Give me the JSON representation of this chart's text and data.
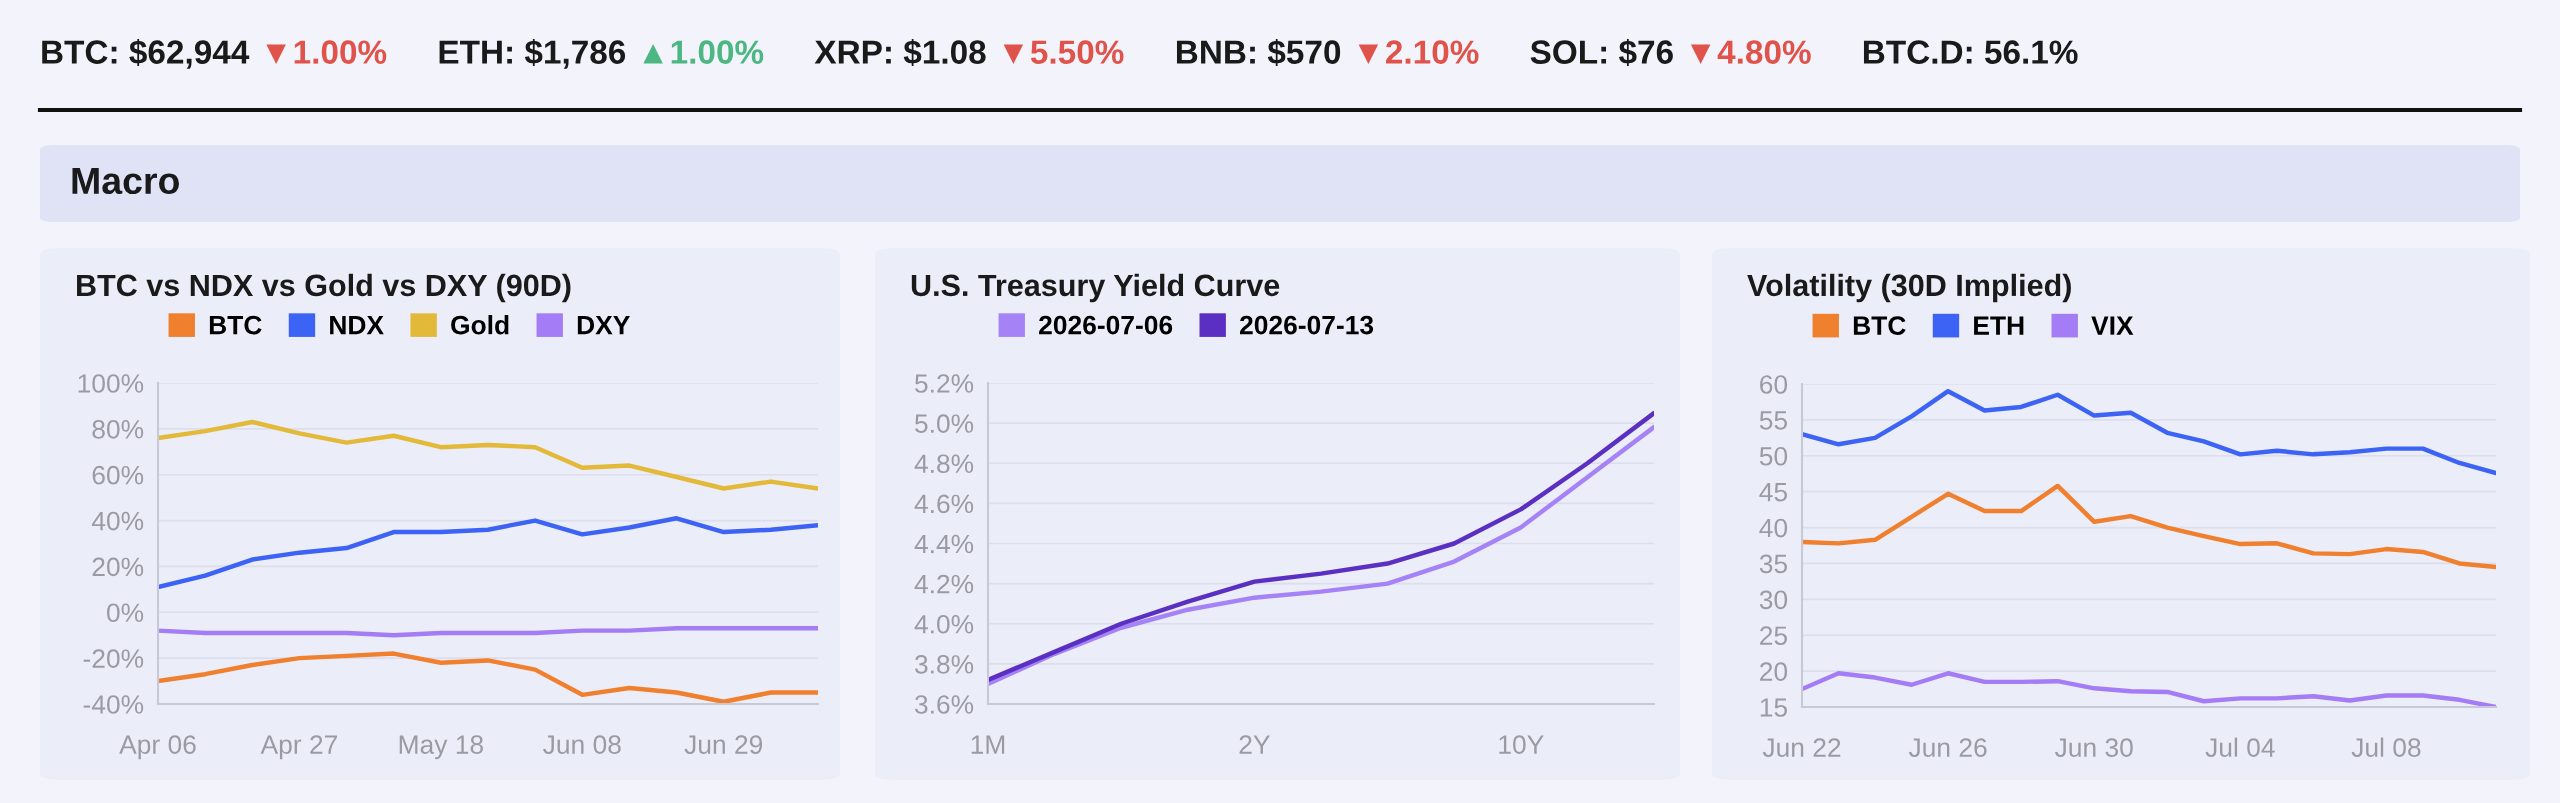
{
  "chart_data": [
    {
      "type": "other",
      "title": "Macro",
      "annotations": [
        "BTC: $62,944",
        "▼1.00%",
        "ETH: $1,786",
        "▲1.00%",
        "XRP: $1.08",
        "▼5.50%",
        "BNB: $570",
        "▼2.10%",
        "SOL: $76",
        "▼4.80%",
        "BTC.D: 56.1%"
      ],
      "colors": [
        "#1a1a1a",
        "#e0534a",
        "#1a1a1a",
        "#4cb782",
        "#1a1a1a",
        "#e0534a",
        "#1a1a1a",
        "#e0534a",
        "#1a1a1a",
        "#e0534a",
        "#1a1a1a"
      ]
    },
    {
      "type": "line",
      "title": "BTC vs NDX vs Gold vs DXY (90D)",
      "categories": [
        "Apr 06",
        null,
        null,
        "Apr 27",
        null,
        null,
        "May 18",
        null,
        null,
        "Jun 08",
        null,
        null,
        "Jun 29",
        null,
        null
      ],
      "series": [
        {
          "name": "BTC",
          "color": "#f07f2e",
          "values": [
            -30,
            -27,
            -23,
            -20,
            -19,
            -18,
            -22,
            -21,
            -25,
            -36,
            -33,
            -35,
            -39,
            -35,
            -35
          ]
        },
        {
          "name": "NDX",
          "color": "#3d63f5",
          "values": [
            11,
            16,
            23,
            26,
            28,
            35,
            35,
            36,
            40,
            34,
            37,
            41,
            35,
            36,
            38
          ]
        },
        {
          "name": "Gold",
          "color": "#e3b93a",
          "values": [
            76,
            79,
            83,
            78,
            74,
            77,
            72,
            73,
            72,
            63,
            64,
            59,
            54,
            57,
            54
          ]
        },
        {
          "name": "DXY",
          "color": "#a47cf5",
          "values": [
            -8,
            -9,
            -9,
            -9,
            -9,
            -10,
            -9,
            -9,
            -9,
            -8,
            -8,
            -7,
            -7,
            -7,
            -7
          ]
        }
      ],
      "ylim": [
        -40,
        100
      ],
      "yticks": [
        {
          "value": -40,
          "label": "-40%"
        },
        {
          "value": -20,
          "label": "-20%"
        },
        {
          "value": 0,
          "label": "0%"
        },
        {
          "value": 20,
          "label": "20%"
        },
        {
          "value": 40,
          "label": "40%"
        },
        {
          "value": 60,
          "label": "60%"
        },
        {
          "value": 80,
          "label": "80%"
        },
        {
          "value": 100,
          "label": "100%"
        }
      ],
      "grid": "y",
      "legend": "top left",
      "marker": "none",
      "line_style": "solid"
    },
    {
      "type": "line",
      "title": "U.S. Treasury Yield Curve",
      "categories": [
        "1M",
        null,
        null,
        null,
        "2Y",
        null,
        null,
        null,
        "10Y",
        null,
        null
      ],
      "series": [
        {
          "name": "2026-07-06",
          "color": "#a583f7",
          "values": [
            3.7,
            3.85,
            3.98,
            4.07,
            4.13,
            4.16,
            4.2,
            4.31,
            4.48,
            4.73,
            4.98
          ]
        },
        {
          "name": "2026-07-13",
          "color": "#5a2fc2",
          "values": [
            3.72,
            3.86,
            4.0,
            4.11,
            4.21,
            4.25,
            4.3,
            4.4,
            4.57,
            4.8,
            5.05
          ]
        }
      ],
      "ylim": [
        3.6,
        5.2
      ],
      "yticks": [
        {
          "value": 3.6,
          "label": "3.6%"
        },
        {
          "value": 3.8,
          "label": "3.8%"
        },
        {
          "value": 4.0,
          "label": "4.0%"
        },
        {
          "value": 4.2,
          "label": "4.2%"
        },
        {
          "value": 4.4,
          "label": "4.4%"
        },
        {
          "value": 4.6,
          "label": "4.6%"
        },
        {
          "value": 4.8,
          "label": "4.8%"
        },
        {
          "value": 5.0,
          "label": "5.0%"
        },
        {
          "value": 5.2,
          "label": "5.2%"
        }
      ],
      "grid": "y",
      "legend": "top left",
      "marker": "none",
      "line_style": "solid"
    },
    {
      "type": "line",
      "title": "Volatility (30D Implied)",
      "categories": [
        "Jun 22",
        null,
        null,
        null,
        "Jun 26",
        null,
        null,
        null,
        "Jun 30",
        null,
        null,
        null,
        "Jul 04",
        null,
        null,
        null,
        "Jul 08",
        null,
        null,
        null
      ],
      "series": [
        {
          "name": "BTC",
          "color": "#f07f2e",
          "values": [
            38,
            37.8,
            38.3,
            41.5,
            44.7,
            42.3,
            42.3,
            45.8,
            40.8,
            41.6,
            40,
            38.8,
            37.7,
            37.8,
            36.4,
            36.3,
            37,
            36.6,
            35,
            34.5
          ]
        },
        {
          "name": "ETH",
          "color": "#3d63f5",
          "values": [
            53,
            51.6,
            52.5,
            55.5,
            59,
            56.3,
            56.8,
            58.5,
            55.6,
            56,
            53.2,
            52,
            50.2,
            50.7,
            50.2,
            50.5,
            51,
            51,
            49,
            47.6
          ]
        },
        {
          "name": "VIX",
          "color": "#a47cf5",
          "values": [
            17.5,
            19.7,
            19.1,
            18.1,
            19.7,
            18.5,
            18.5,
            18.6,
            17.6,
            17.2,
            17.1,
            15.8,
            16.2,
            16.2,
            16.5,
            15.9,
            16.6,
            16.6,
            16,
            15
          ]
        }
      ],
      "ylim": [
        15,
        60
      ],
      "yticks": [
        15,
        20,
        25,
        30,
        35,
        40,
        45,
        50,
        55,
        60
      ],
      "grid": "y",
      "legend": "top left",
      "marker": "none",
      "line_style": "solid"
    }
  ]
}
